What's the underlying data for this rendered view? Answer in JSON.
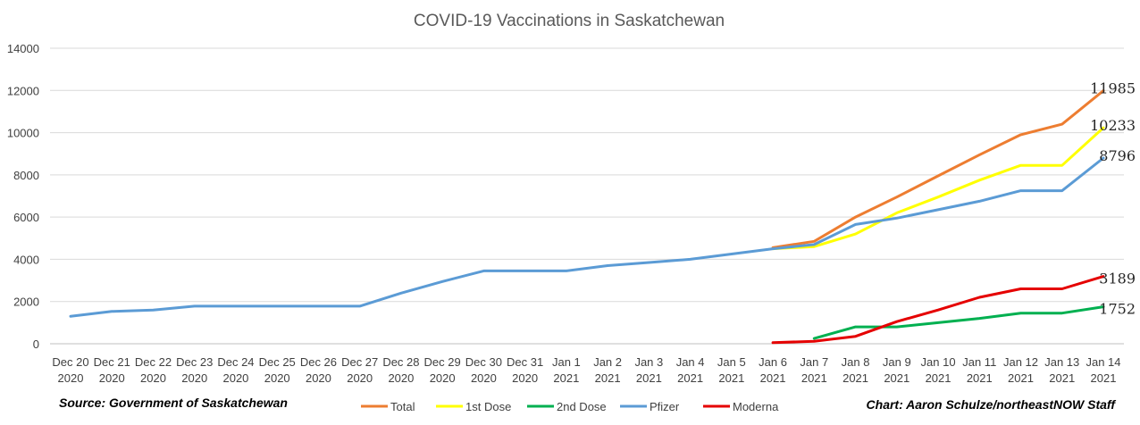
{
  "chart_data": {
    "type": "line",
    "title": "COVID-19 Vaccinations in Saskatchewan",
    "source": "Source: Government of Saskatchewan",
    "credit": "Chart: Aaron Schulze/northeastNOW Staff",
    "ylim": [
      0,
      14000
    ],
    "yticks": [
      0,
      2000,
      4000,
      6000,
      8000,
      10000,
      12000,
      14000
    ],
    "categories": [
      [
        "Dec 20",
        "2020"
      ],
      [
        "Dec 21",
        "2020"
      ],
      [
        "Dec 22",
        "2020"
      ],
      [
        "Dec 23",
        "2020"
      ],
      [
        "Dec 24",
        "2020"
      ],
      [
        "Dec 25",
        "2020"
      ],
      [
        "Dec 26",
        "2020"
      ],
      [
        "Dec 27",
        "2020"
      ],
      [
        "Dec 28",
        "2020"
      ],
      [
        "Dec 29",
        "2020"
      ],
      [
        "Dec 30",
        "2020"
      ],
      [
        "Dec 31",
        "2020"
      ],
      [
        "Jan 1",
        "2021"
      ],
      [
        "Jan 2",
        "2021"
      ],
      [
        "Jan 3",
        "2021"
      ],
      [
        "Jan 4",
        "2021"
      ],
      [
        "Jan 5",
        "2021"
      ],
      [
        "Jan 6",
        "2021"
      ],
      [
        "Jan 7",
        "2021"
      ],
      [
        "Jan 8",
        "2021"
      ],
      [
        "Jan 9",
        "2021"
      ],
      [
        "Jan 10",
        "2021"
      ],
      [
        "Jan 11",
        "2021"
      ],
      [
        "Jan 12",
        "2021"
      ],
      [
        "Jan 13",
        "2021"
      ],
      [
        "Jan 14",
        "2021"
      ]
    ],
    "series": [
      {
        "name": "Total",
        "color": "#ED7D31",
        "end_label": "11985",
        "values": [
          null,
          null,
          null,
          null,
          null,
          null,
          null,
          null,
          null,
          null,
          null,
          null,
          null,
          null,
          null,
          null,
          null,
          4550,
          4850,
          6000,
          6950,
          7950,
          8950,
          9900,
          10400,
          11985
        ]
      },
      {
        "name": "1st Dose",
        "color": "#FFFF00",
        "end_label": "10233",
        "values": [
          null,
          null,
          null,
          null,
          null,
          null,
          null,
          null,
          null,
          null,
          null,
          null,
          null,
          null,
          null,
          null,
          null,
          4500,
          4600,
          5200,
          6200,
          6950,
          7750,
          8450,
          8450,
          10233
        ]
      },
      {
        "name": "2nd Dose",
        "color": "#00B050",
        "end_label": "1752",
        "values": [
          null,
          null,
          null,
          null,
          null,
          null,
          null,
          null,
          null,
          null,
          null,
          null,
          null,
          null,
          null,
          null,
          null,
          null,
          250,
          800,
          800,
          1000,
          1200,
          1450,
          1450,
          1752
        ]
      },
      {
        "name": "Pfizer",
        "color": "#5B9BD5",
        "end_label": "8796",
        "values": [
          1300,
          1530,
          1600,
          1780,
          1780,
          1780,
          1780,
          1780,
          2400,
          2950,
          3450,
          3450,
          3450,
          3700,
          3850,
          4000,
          4250,
          4500,
          4700,
          5650,
          5950,
          6350,
          6750,
          7250,
          7250,
          8796
        ]
      },
      {
        "name": "Moderna",
        "color": "#E50000",
        "end_label": "3189",
        "values": [
          null,
          null,
          null,
          null,
          null,
          null,
          null,
          null,
          null,
          null,
          null,
          null,
          null,
          null,
          null,
          null,
          null,
          50,
          120,
          350,
          1050,
          1600,
          2200,
          2600,
          2600,
          3189
        ]
      }
    ],
    "legend_position": "bottom"
  }
}
